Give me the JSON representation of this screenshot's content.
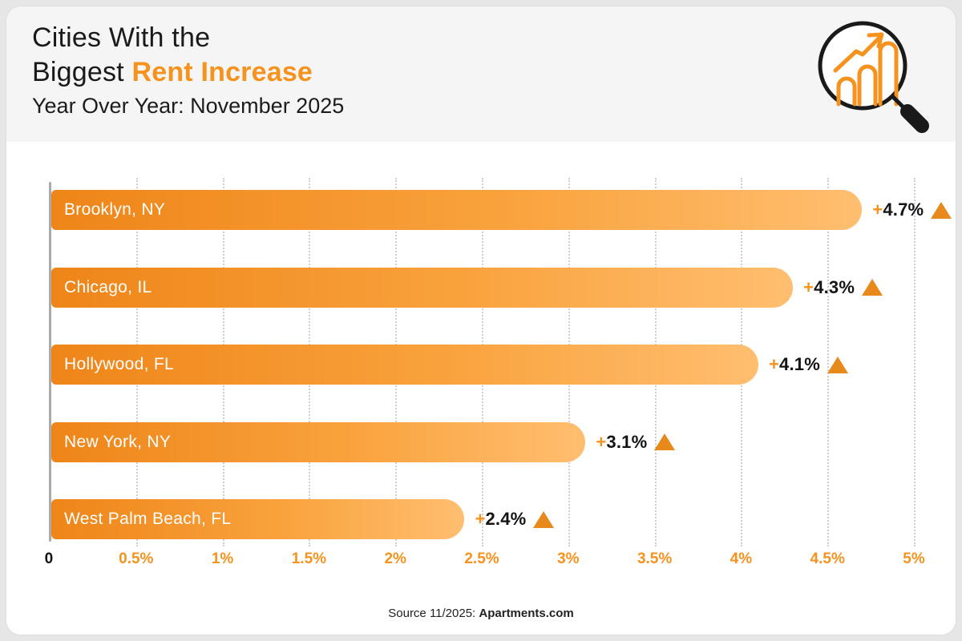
{
  "header": {
    "title_line1": "Cities With the",
    "title_line2_plain": "Biggest ",
    "title_line2_accent": "Rent Increase",
    "subtitle": "Year Over Year: November 2025",
    "logo": "magnifier-bar-chart-icon"
  },
  "colors": {
    "accent_orange": "#f6921e",
    "bar_gradient_start": "#ee8519",
    "bar_gradient_end": "#ffbe70",
    "triangle_orange": "#e8891c",
    "header_bg": "#f5f5f6",
    "body_bg": "#ffffff",
    "text_dark": "#1a1a1a"
  },
  "chart_data": {
    "type": "bar",
    "orientation": "horizontal",
    "title": "Cities With the Biggest Rent Increase",
    "subtitle": "Year Over Year: November 2025",
    "categories": [
      "Brooklyn, NY",
      "Chicago, IL",
      "Hollywood, FL",
      "New York, NY",
      "West Palm Beach, FL"
    ],
    "values": [
      4.7,
      4.3,
      4.1,
      3.1,
      2.4
    ],
    "value_labels": [
      "+4.7%",
      "+4.3%",
      "+4.1%",
      "+3.1%",
      "+2.4%"
    ],
    "xlabel": "",
    "ylabel": "",
    "xlim": [
      0,
      5
    ],
    "x_ticks": [
      {
        "value": 0,
        "label": "0"
      },
      {
        "value": 0.5,
        "label": "0.5%"
      },
      {
        "value": 1,
        "label": "1%"
      },
      {
        "value": 1.5,
        "label": "1.5%"
      },
      {
        "value": 2,
        "label": "2%"
      },
      {
        "value": 2.5,
        "label": "2.5%"
      },
      {
        "value": 3,
        "label": "3%"
      },
      {
        "value": 3.5,
        "label": "3.5%"
      },
      {
        "value": 4,
        "label": "4%"
      },
      {
        "value": 4.5,
        "label": "4.5%"
      },
      {
        "value": 5,
        "label": "5%"
      }
    ],
    "grid": "vertical-dotted",
    "legend": "none"
  },
  "footer": {
    "source_prefix": "Source 11/2025: ",
    "source_name": "Apartments.com"
  }
}
